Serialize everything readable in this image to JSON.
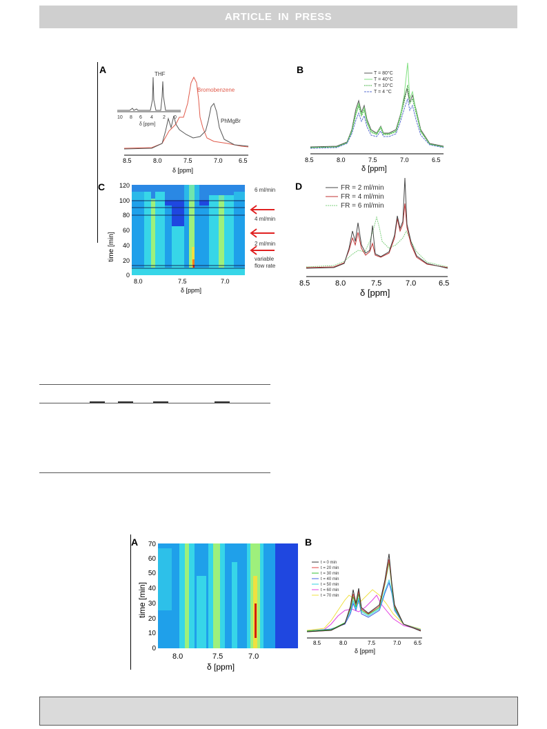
{
  "header": {
    "banner": "ARTICLE IN PRESS"
  },
  "figure1": {
    "A": {
      "panel_label": "A",
      "peak_labels": [
        "THF",
        "Bromobenzene",
        "PhMgBr"
      ],
      "inset_xticks": [
        "10",
        "8",
        "6",
        "4",
        "2",
        "0"
      ],
      "inset_xlabel": "δ [ppm]",
      "xticks": [
        "8.5",
        "8.0",
        "7.5",
        "7.0",
        "6.5"
      ],
      "xlabel": "δ [ppm]",
      "colors": {
        "phmgbr": "#555555",
        "bromobenzene": "#e05a4a"
      }
    },
    "B": {
      "panel_label": "B",
      "legend": [
        "T = 80°C",
        "T = 40°C",
        "T = 10°C",
        "T = 4 °C"
      ],
      "xticks": [
        "8.5",
        "8.0",
        "7.5",
        "7.0",
        "6.5"
      ],
      "xlabel": "δ [ppm]",
      "colors": [
        "#555555",
        "#80e080",
        "#40b040",
        "#5a6fd0"
      ]
    },
    "C": {
      "panel_label": "C",
      "ylabel": "time [min]",
      "yticks": [
        "0",
        "20",
        "40",
        "60",
        "80",
        "100",
        "120"
      ],
      "xticks": [
        "8.0",
        "7.5",
        "7.0"
      ],
      "xlabel": "δ [ppm]",
      "annotations": [
        "6 ml/min",
        "4 ml/min",
        "2 ml/min",
        "variable",
        "flow rate"
      ]
    },
    "D": {
      "panel_label": "D",
      "legend": [
        "FR = 2 ml/min",
        "FR = 4 ml/min",
        "FR = 6 ml/min"
      ],
      "xticks": [
        "8.5",
        "8.0",
        "7.5",
        "7.0",
        "6.5"
      ],
      "xlabel": "δ [ppm]",
      "colors": [
        "#444444",
        "#c03030",
        "#7fd07f"
      ]
    }
  },
  "figure2": {
    "A": {
      "panel_label": "A",
      "ylabel": "time [min]",
      "yticks": [
        "0",
        "10",
        "20",
        "30",
        "40",
        "50",
        "60",
        "70"
      ],
      "xticks": [
        "8.0",
        "7.5",
        "7.0"
      ],
      "xlabel": "δ [ppm]"
    },
    "B": {
      "panel_label": "B",
      "legend": [
        "t = 0   min",
        "t = 20 min",
        "t = 30 min",
        "t = 40 min",
        "t = 50 min",
        "t = 60 min",
        "t = 70 min"
      ],
      "xticks": [
        "8.5",
        "8.0",
        "7.5",
        "7.0",
        "6.5"
      ],
      "xlabel": "δ [ppm]",
      "colors": [
        "#333333",
        "#e04040",
        "#30c030",
        "#4060e0",
        "#30d0e0",
        "#e040e0",
        "#f0e040"
      ]
    }
  }
}
